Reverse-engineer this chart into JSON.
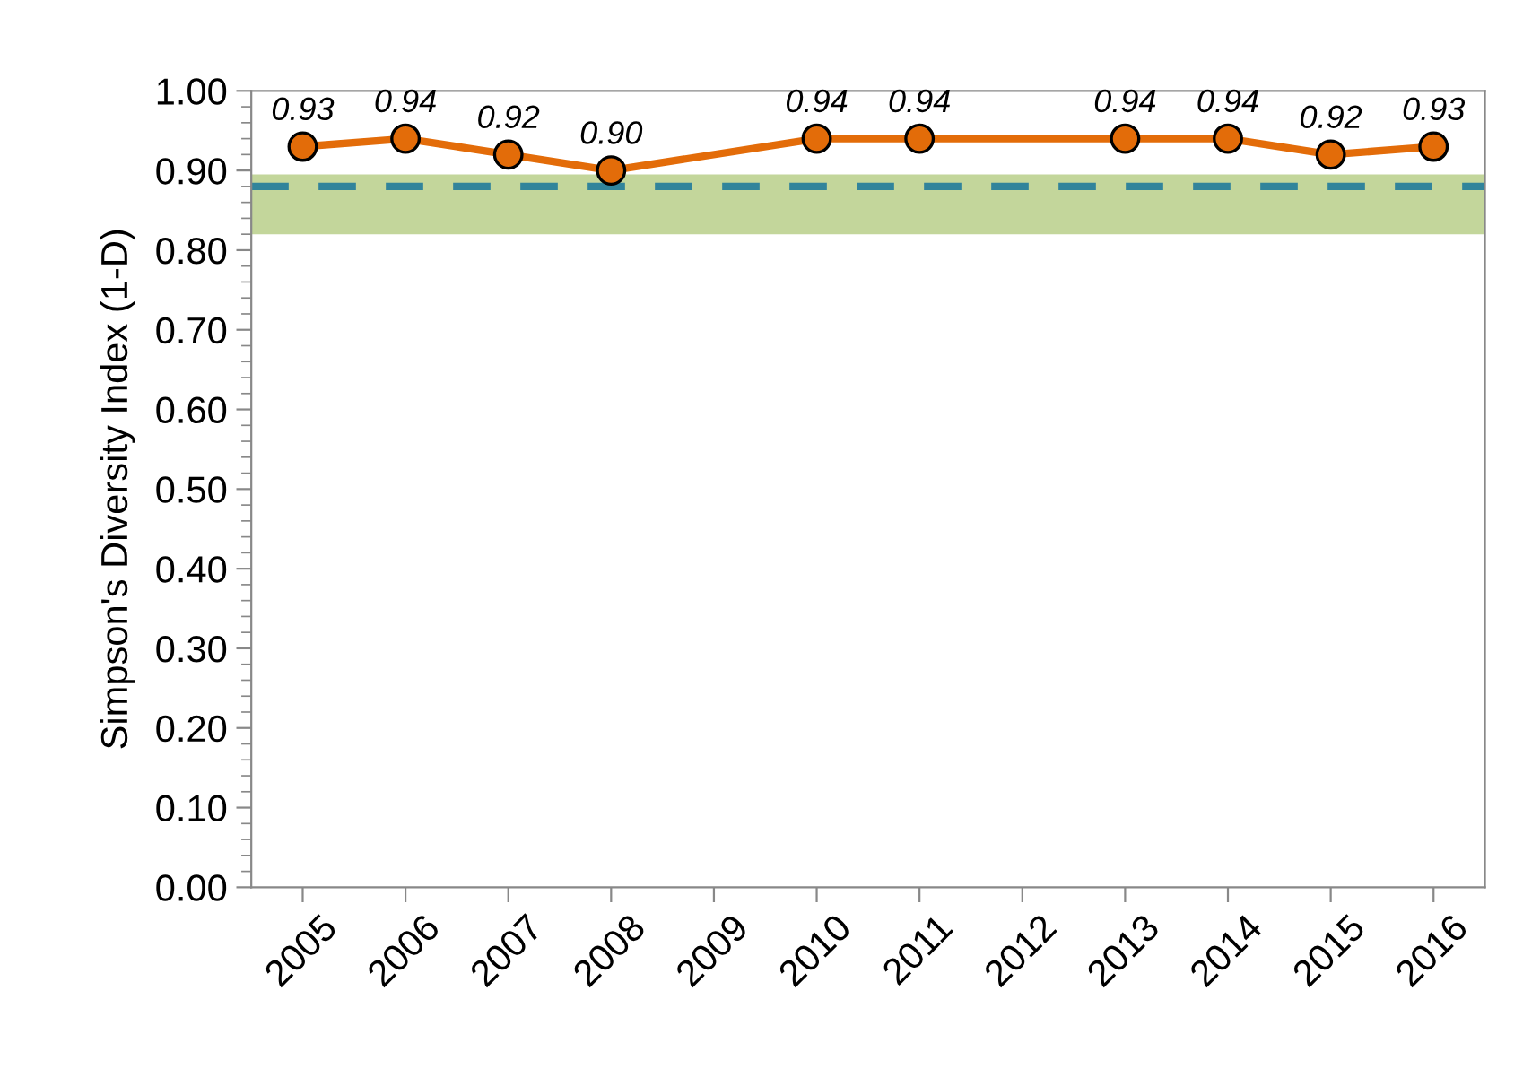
{
  "chart_data": {
    "type": "line",
    "ylabel": "Simpson's Diversity Index (1-D)",
    "categories": [
      "2005",
      "2006",
      "2007",
      "2008",
      "2009",
      "2010",
      "2011",
      "2012",
      "2013",
      "2014",
      "2015",
      "2016"
    ],
    "series": [
      {
        "color": "#e36c09",
        "values": [
          0.93,
          0.94,
          0.92,
          0.9,
          null,
          0.94,
          0.94,
          null,
          0.94,
          0.94,
          0.92,
          0.93
        ],
        "value_labels": [
          "0.93",
          "0.94",
          "0.92",
          "0.90",
          null,
          "0.94",
          "0.94",
          null,
          "0.94",
          "0.94",
          "0.92",
          "0.93"
        ]
      }
    ],
    "marker": "circle",
    "line_style": "solid",
    "grid": false,
    "ylim": [
      0,
      1
    ],
    "yticks": [
      "0.00",
      "0.10",
      "0.20",
      "0.30",
      "0.40",
      "0.50",
      "0.60",
      "0.70",
      "0.80",
      "0.90",
      "1.00"
    ],
    "ref_lines": [
      {
        "axis": "y",
        "value": 0.88,
        "color": "#31849b",
        "line_style": "dashed"
      }
    ],
    "bands": [
      {
        "axis": "y",
        "from": 0.82,
        "to": 0.895,
        "color": "#c3d69b"
      }
    ]
  }
}
